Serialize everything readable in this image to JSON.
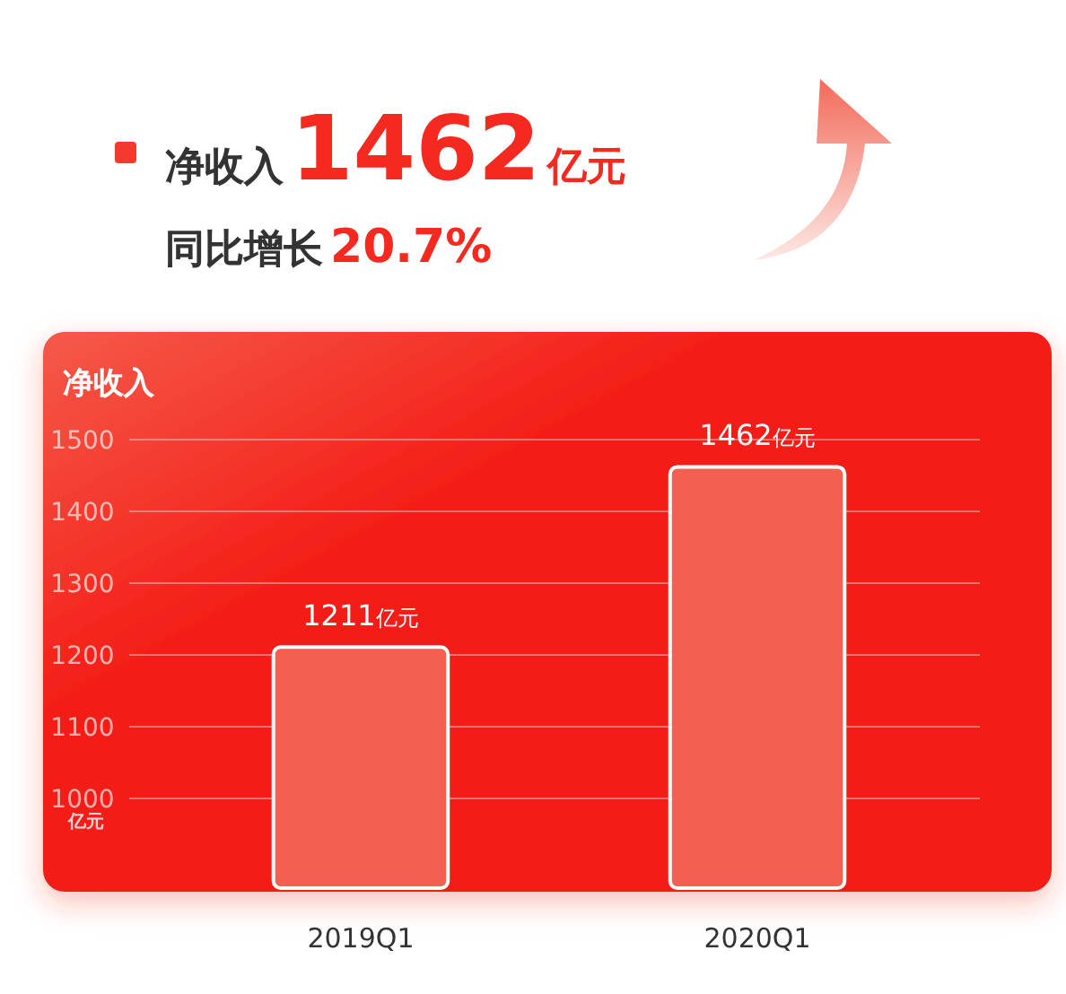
{
  "chart_data": {
    "type": "bar",
    "title": "净收入1462亿元",
    "subtitle": "同比增长20.7%",
    "ylabel": "净收入",
    "annotations": [
      "亿元"
    ],
    "categories": [
      "2019Q1",
      "2020Q1"
    ],
    "values": [
      1211,
      1462
    ],
    "value_labels": [
      "1211亿元",
      "1462亿元"
    ],
    "color": "#f4604f",
    "ylim": [
      875,
      1500
    ],
    "yticks": [
      1000,
      1100,
      1200,
      1300,
      1400,
      1500
    ],
    "grid": "y"
  }
}
